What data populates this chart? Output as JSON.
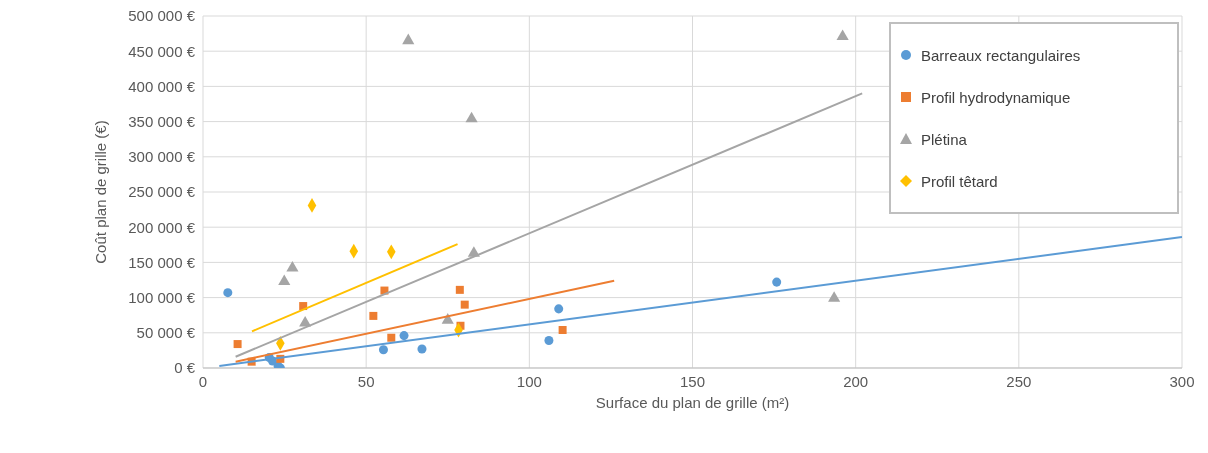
{
  "chart_data": {
    "type": "scatter",
    "xlabel": "Surface du plan de grille (m²)",
    "ylabel": "Coût plan de grille (€)",
    "xlim": [
      0,
      300
    ],
    "xticks": [
      0,
      50,
      100,
      150,
      200,
      250,
      300
    ],
    "ylim": [
      0,
      500000
    ],
    "yticks": [
      {
        "value": 0,
        "label": "0 €"
      },
      {
        "value": 50000,
        "label": "50 000 €"
      },
      {
        "value": 100000,
        "label": "100 000 €"
      },
      {
        "value": 150000,
        "label": "150 000 €"
      },
      {
        "value": 200000,
        "label": "200 000 €"
      },
      {
        "value": 250000,
        "label": "250 000 €"
      },
      {
        "value": 300000,
        "label": "300 000 €"
      },
      {
        "value": 350000,
        "label": "350 000 €"
      },
      {
        "value": 400000,
        "label": "400 000 €"
      },
      {
        "value": 450000,
        "label": "450 000 €"
      },
      {
        "value": 500000,
        "label": "500 000 €"
      }
    ],
    "grid": true,
    "legend": "top right",
    "series": [
      {
        "name": "Barreaux rectangulaires",
        "color": "#5b9bd5",
        "marker": "circle",
        "x": [
          7.6,
          20.3,
          21.3,
          23,
          23.7,
          55.3,
          61.6,
          67.1,
          106,
          109,
          175.8
        ],
        "values": [
          107000,
          15000,
          10000,
          3000,
          0,
          26000,
          46000,
          27000,
          39000,
          84000,
          122000
        ]
      },
      {
        "name": "Profil hydrodynamique",
        "color": "#ed7d31",
        "marker": "square",
        "x": [
          10.6,
          14.9,
          23.7,
          30.7,
          52.2,
          55.6,
          57.7,
          78.7,
          80.2,
          78.9,
          110.2
        ],
        "values": [
          34000,
          9000,
          13000,
          88000,
          74000,
          110000,
          43000,
          111000,
          90000,
          60000,
          54000
        ]
      },
      {
        "name": "Plétina",
        "color": "#a5a5a5",
        "marker": "triangle",
        "x": [
          24.9,
          27.4,
          31.3,
          62.9,
          75,
          82.3,
          83,
          193.4,
          196
        ],
        "values": [
          123000,
          142000,
          64000,
          465000,
          68000,
          354000,
          163000,
          99000,
          471000
        ]
      },
      {
        "name": "Profil têtard",
        "color": "#ffc000",
        "marker": "diamond",
        "x": [
          23.7,
          33.4,
          46.2,
          57.7,
          78.3
        ],
        "values": [
          35000,
          231000,
          166000,
          165000,
          54000
        ]
      },
      {
        "type": "line",
        "color": "#5b9bd5",
        "x": [
          5,
          300
        ],
        "values": [
          3000,
          186000
        ]
      },
      {
        "type": "line",
        "color": "#ed7d31",
        "x": [
          10,
          126
        ],
        "values": [
          9000,
          124000
        ]
      },
      {
        "type": "line",
        "color": "#a5a5a5",
        "x": [
          10,
          202
        ],
        "values": [
          16000,
          390000
        ]
      },
      {
        "type": "line",
        "color": "#ffc000",
        "x": [
          15,
          78
        ],
        "values": [
          52000,
          176000
        ]
      }
    ]
  }
}
